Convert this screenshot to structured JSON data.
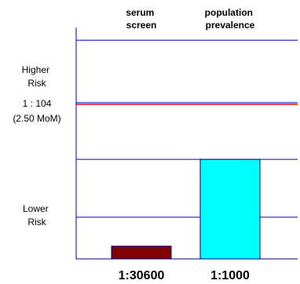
{
  "chart_data": {
    "type": "bar",
    "categories": [
      "serum screen",
      "population prevalence"
    ],
    "category_label_lines": [
      [
        "serum",
        "screen"
      ],
      [
        "population",
        "prevalence"
      ]
    ],
    "bottom_labels": [
      "1:30600",
      "1:1000"
    ],
    "bar_heights_fraction": [
      0.055,
      0.43
    ],
    "bar_colors": [
      "#800000",
      "#00FFFF"
    ],
    "zones": {
      "higher_risk_lines": [
        "Higher",
        "Risk"
      ],
      "lower_risk_lines": [
        "Lower",
        "Risk"
      ]
    },
    "cutoff": {
      "ratio_label": "1 : 104",
      "mom_label": "(2.50 MoM)",
      "line_color": "#FF0000",
      "position_fraction": 0.675
    },
    "gridline_fractions": [
      0.0,
      0.18,
      0.43,
      0.675,
      0.945
    ],
    "gridline_color": "#0000CC",
    "axis_color": "#000080"
  }
}
